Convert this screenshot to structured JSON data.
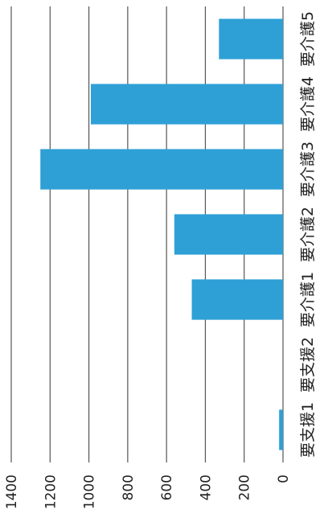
{
  "chart_data": {
    "type": "bar",
    "orientation": "horizontal-rotated",
    "categories": [
      "要支援1",
      "要支援2",
      "要介護1",
      "要介護2",
      "要介護3",
      "要介護4",
      "要介護5"
    ],
    "values": [
      20,
      0,
      470,
      560,
      1250,
      990,
      330
    ],
    "title": "",
    "xlabel": "",
    "ylabel": "",
    "ylim": [
      0,
      1400
    ],
    "yticks": [
      0,
      200,
      400,
      600,
      800,
      1000,
      1200,
      1400
    ],
    "grid": true,
    "legend": "none",
    "bar_color": "#2ea0d6"
  }
}
